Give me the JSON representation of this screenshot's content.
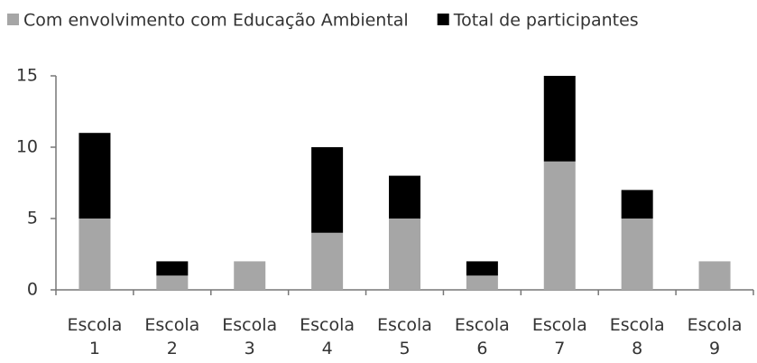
{
  "chart_data": {
    "type": "stacked_bar",
    "categories": [
      "Escola 1",
      "Escola 2",
      "Escola 3",
      "Escola 4",
      "Escola 5",
      "Escola 6",
      "Escola 7",
      "Escola 8",
      "Escola 9"
    ],
    "series": [
      {
        "name": "Com envolvimento com Educação Ambiental",
        "color": "#a6a6a6",
        "values": [
          5,
          1,
          2,
          4,
          5,
          1,
          9,
          5,
          2
        ]
      },
      {
        "name": "Total de participantes",
        "color": "#000000",
        "values": [
          6,
          1,
          0,
          6,
          3,
          1,
          6,
          2,
          0
        ]
      }
    ],
    "ylim": [
      0,
      15
    ],
    "yticks": [
      0,
      5,
      10,
      15
    ],
    "grid": false,
    "legend": "top"
  }
}
